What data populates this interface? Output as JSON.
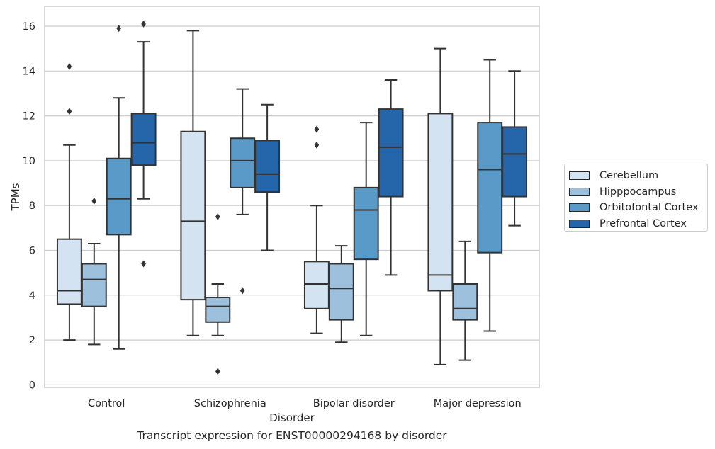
{
  "chart_data": {
    "type": "box",
    "xlabel": "Disorder",
    "ylabel": "TPMs",
    "caption": "Transcript expression for ENST00000294168 by disorder",
    "ylim": [
      -0.2,
      16.8
    ],
    "yticks": [
      0,
      2,
      4,
      6,
      8,
      10,
      12,
      14,
      16
    ],
    "grid": true,
    "legend_position": "right",
    "categories": [
      "Control",
      "Schizophrenia",
      "Bipolar disorder",
      "Major depression"
    ],
    "series": [
      {
        "name": "Cerebellum",
        "color": "#d4e3f2",
        "boxes": [
          {
            "whislo": 2.0,
            "q1": 3.6,
            "med": 4.2,
            "q3": 6.5,
            "whishi": 10.7,
            "fliers": [
              12.2,
              14.2
            ]
          },
          {
            "whislo": 2.2,
            "q1": 3.8,
            "med": 7.3,
            "q3": 11.3,
            "whishi": 15.8,
            "fliers": []
          },
          {
            "whislo": 2.3,
            "q1": 3.4,
            "med": 4.5,
            "q3": 5.5,
            "whishi": 8.0,
            "fliers": [
              10.7,
              11.4
            ]
          },
          {
            "whislo": 0.9,
            "q1": 4.2,
            "med": 4.9,
            "q3": 12.1,
            "whishi": 15.0,
            "fliers": []
          }
        ]
      },
      {
        "name": "Hipppocampus",
        "color": "#9dc1dd",
        "boxes": [
          {
            "whislo": 1.8,
            "q1": 3.5,
            "med": 4.7,
            "q3": 5.4,
            "whishi": 6.3,
            "fliers": [
              8.2
            ]
          },
          {
            "whislo": 2.2,
            "q1": 2.8,
            "med": 3.5,
            "q3": 3.9,
            "whishi": 4.5,
            "fliers": [
              0.6,
              7.5
            ]
          },
          {
            "whislo": 1.9,
            "q1": 2.9,
            "med": 4.3,
            "q3": 5.4,
            "whishi": 6.2,
            "fliers": []
          },
          {
            "whislo": 1.1,
            "q1": 2.9,
            "med": 3.4,
            "q3": 4.5,
            "whishi": 6.4,
            "fliers": []
          }
        ]
      },
      {
        "name": "Orbitofontal Cortex",
        "color": "#5a9ac8",
        "boxes": [
          {
            "whislo": 1.6,
            "q1": 6.7,
            "med": 8.3,
            "q3": 10.1,
            "whishi": 12.8,
            "fliers": [
              15.9
            ]
          },
          {
            "whislo": 7.6,
            "q1": 8.8,
            "med": 10.0,
            "q3": 11.0,
            "whishi": 13.2,
            "fliers": [
              4.2
            ]
          },
          {
            "whislo": 2.2,
            "q1": 5.6,
            "med": 7.8,
            "q3": 8.8,
            "whishi": 11.7,
            "fliers": []
          },
          {
            "whislo": 2.4,
            "q1": 5.9,
            "med": 9.6,
            "q3": 11.7,
            "whishi": 14.5,
            "fliers": []
          }
        ]
      },
      {
        "name": "Prefrontal Cortex",
        "color": "#2565aa",
        "boxes": [
          {
            "whislo": 8.3,
            "q1": 9.8,
            "med": 10.8,
            "q3": 12.1,
            "whishi": 15.3,
            "fliers": [
              5.4,
              16.1
            ]
          },
          {
            "whislo": 6.0,
            "q1": 8.6,
            "med": 9.4,
            "q3": 10.9,
            "whishi": 12.5,
            "fliers": []
          },
          {
            "whislo": 4.9,
            "q1": 8.4,
            "med": 10.6,
            "q3": 12.3,
            "whishi": 13.6,
            "fliers": []
          },
          {
            "whislo": 7.1,
            "q1": 8.4,
            "med": 10.3,
            "q3": 11.5,
            "whishi": 14.0,
            "fliers": []
          }
        ]
      }
    ]
  }
}
